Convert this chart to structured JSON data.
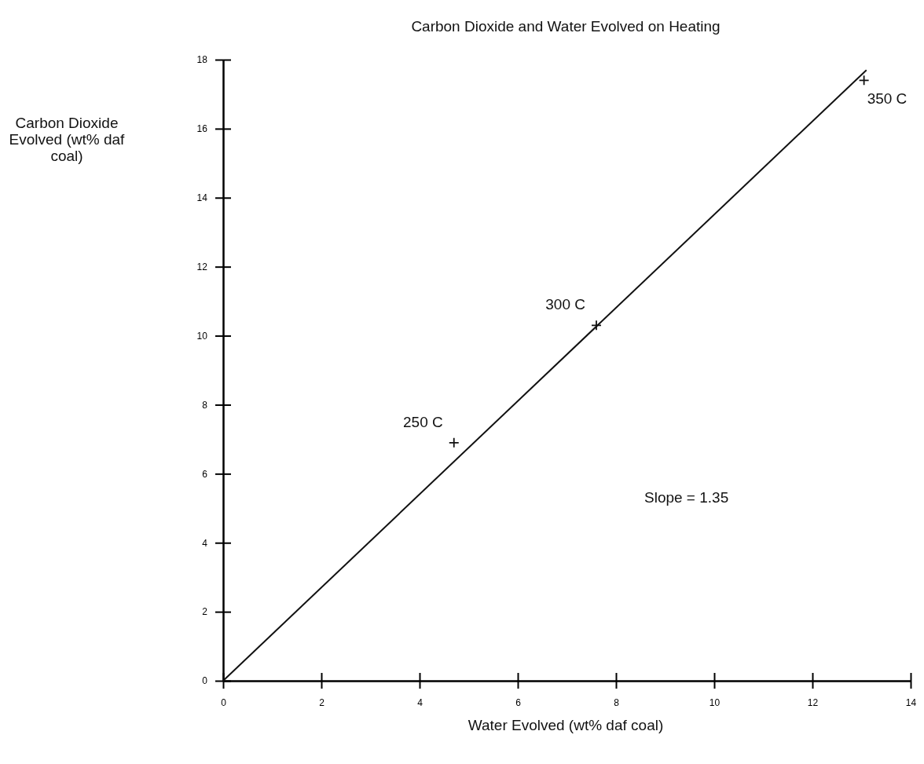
{
  "chart_data": {
    "type": "scatter",
    "title": "Carbon Dioxide and Water Evolved on Heating",
    "xlabel": "Water Evolved (wt% daf coal)",
    "ylabel": "Carbon Dioxide Evolved (wt% daf coal)",
    "xlim": [
      0,
      14
    ],
    "xticks": [
      0,
      2,
      4,
      6,
      8,
      10,
      12,
      14
    ],
    "ylim": [
      0,
      18
    ],
    "yticks": [
      0,
      2,
      4,
      6,
      8,
      10,
      12,
      14,
      16,
      18
    ],
    "grid": false,
    "marker": "cross",
    "series": [
      {
        "color": "#111111",
        "x": [
          4.7,
          7.6,
          13.05
        ],
        "values": [
          6.9,
          10.3,
          17.4
        ]
      },
      {
        "type": "line",
        "color": "#111111",
        "x": [
          0,
          13.1
        ],
        "values": [
          0,
          17.7
        ],
        "line_style": "solid",
        "marker": "none"
      }
    ],
    "annotations": [
      {
        "text": "250 C",
        "x": 4.7,
        "y": 6.9
      },
      {
        "text": "300 C",
        "x": 7.6,
        "y": 10.3
      },
      {
        "text": "350 C",
        "x": 13.05,
        "y": 17.4
      },
      "Slope = 1.35"
    ]
  }
}
